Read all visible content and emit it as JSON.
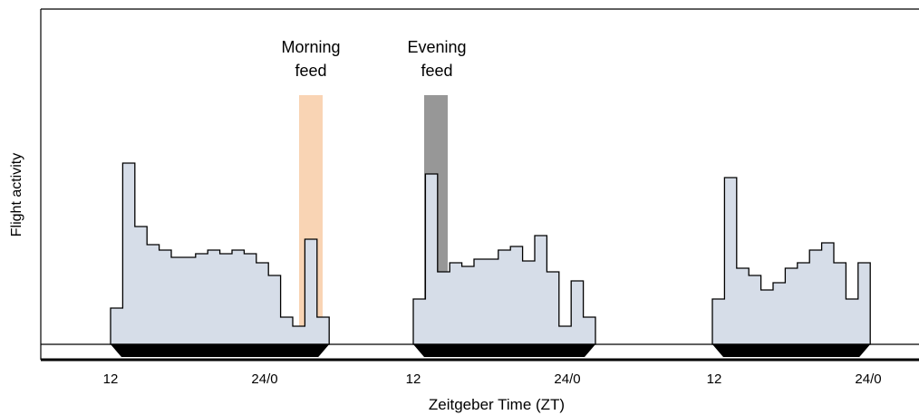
{
  "chart_data": {
    "type": "bar",
    "xlabel": "Zeitgeber Time (ZT)",
    "ylabel": "Flight activity",
    "y_ticks_shown": false,
    "grid": false,
    "colors": {
      "histogram_fill": "#d6dde8",
      "histogram_stroke": "#000000",
      "night_bar": "#000000",
      "morning_feed": "#f9d4b4",
      "evening_feed": "#6b6b6b"
    },
    "x_tick_labels": [
      "12",
      "24/0",
      "12",
      "24/0",
      "12",
      "24/0"
    ],
    "annotations": [
      {
        "key": "morning",
        "lines": [
          "Morning",
          "feed"
        ]
      },
      {
        "key": "evening",
        "lines": [
          "Evening",
          "feed"
        ]
      }
    ],
    "panels": [
      {
        "name": "",
        "bin_hours": 0.5,
        "start_zt": 11,
        "ylim": [
          0,
          1
        ],
        "values": [
          0.2,
          1.0,
          0.65,
          0.55,
          0.52,
          0.48,
          0.48,
          0.5,
          0.52,
          0.5,
          0.52,
          0.5,
          0.45,
          0.38,
          0.15,
          0.1,
          0.58,
          0.15
        ]
      },
      {
        "name": "",
        "bin_hours": 0.5,
        "start_zt": 11,
        "ylim": [
          0,
          1
        ],
        "values": [
          0.25,
          0.94,
          0.4,
          0.45,
          0.43,
          0.47,
          0.47,
          0.52,
          0.54,
          0.46,
          0.6,
          0.4,
          0.1,
          0.35,
          0.15
        ]
      },
      {
        "name": "",
        "bin_hours": 0.5,
        "start_zt": 11,
        "ylim": [
          0,
          1
        ],
        "values": [
          0.25,
          0.92,
          0.42,
          0.38,
          0.3,
          0.34,
          0.42,
          0.45,
          0.52,
          0.56,
          0.45,
          0.25,
          0.45
        ]
      }
    ],
    "feeding_bands": [
      {
        "key": "morning",
        "start_zt": 28.5,
        "end_zt": 29.5
      },
      {
        "key": "evening",
        "start_zt": 36.5,
        "end_zt": 37.5
      }
    ]
  }
}
